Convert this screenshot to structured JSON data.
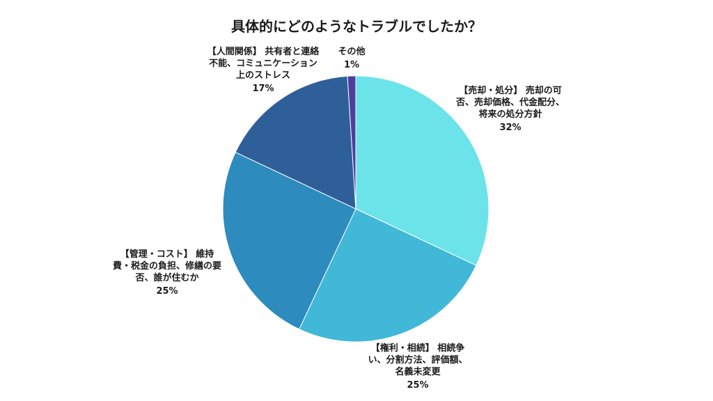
{
  "chart_data": {
    "type": "pie",
    "title": "具体的にどのようなトラブルでしたか？",
    "slices": [
      {
        "label_lines": [
          "【売却・処分】 売却の可",
          "否、売却価格、代金配分、",
          "将来の処分方針"
        ],
        "value": 32,
        "value_label": "32%",
        "color": "#6be3e9"
      },
      {
        "label_lines": [
          "【権利・相続】 相続争",
          "い、分割方法、評価額、",
          "名義未変更"
        ],
        "value": 25,
        "value_label": "25%",
        "color": "#42b8d8"
      },
      {
        "label_lines": [
          "【管理・コスト】 維持",
          "費・税金の負担、修繕の要",
          "否、誰が住むか"
        ],
        "value": 25,
        "value_label": "25%",
        "color": "#2e8bbd"
      },
      {
        "label_lines": [
          "【人間関係】 共有者と連絡",
          "不能、コミュニケーション",
          "上のストレス"
        ],
        "value": 17,
        "value_label": "17%",
        "color": "#2e5f98"
      },
      {
        "label_lines": [
          "その他"
        ],
        "value": 1,
        "value_label": "1%",
        "color": "#4a3f9e"
      }
    ],
    "start": "12 o'clock",
    "direction": "clockwise",
    "legend": "none"
  }
}
